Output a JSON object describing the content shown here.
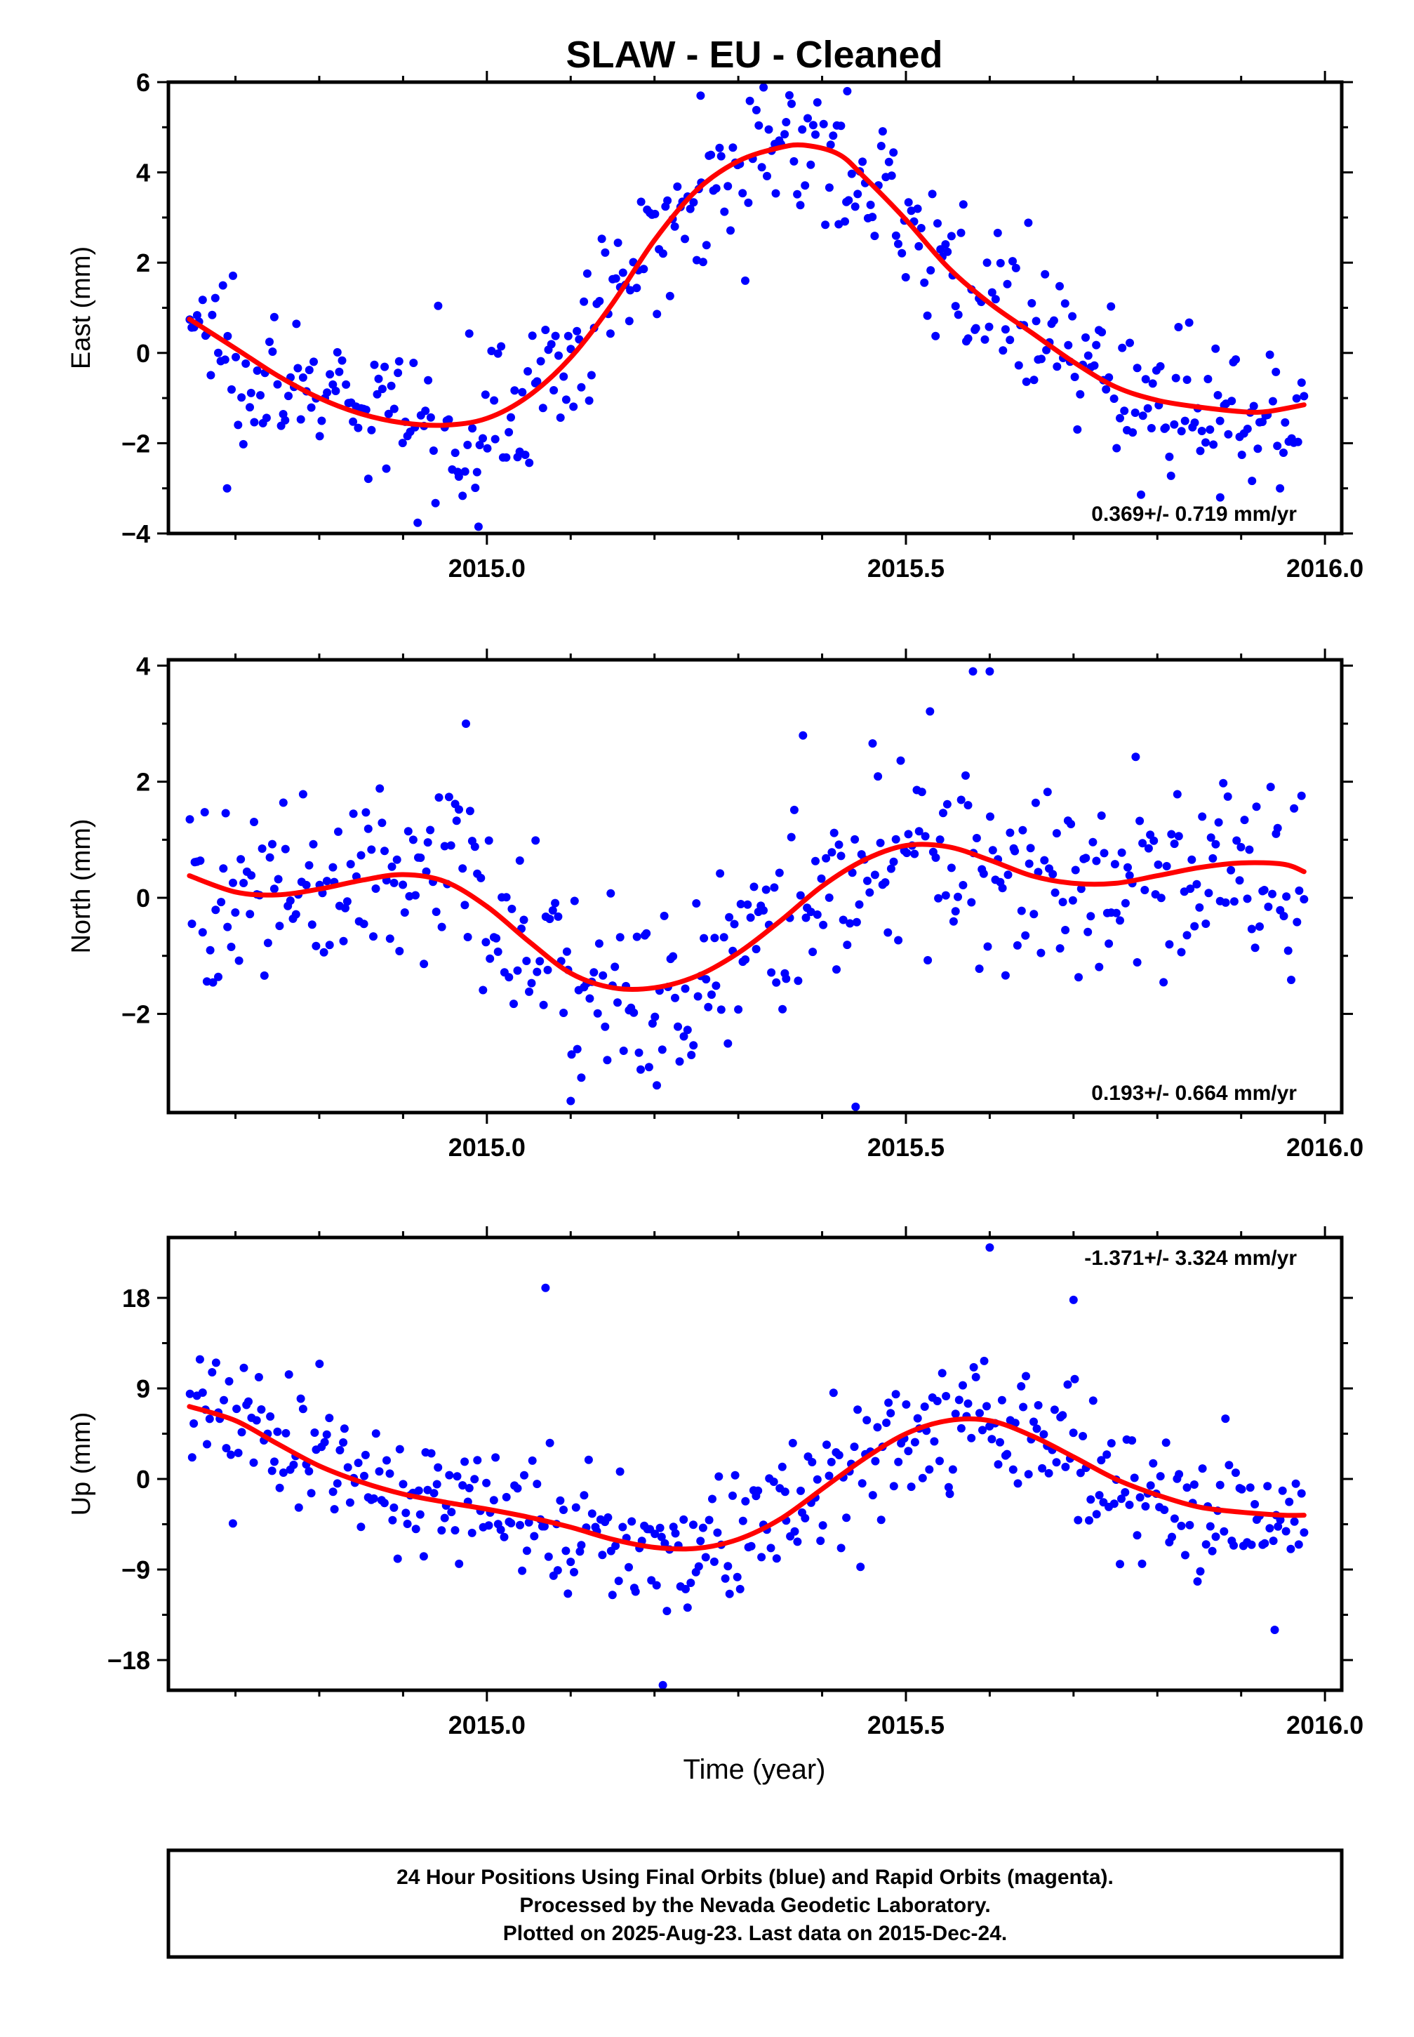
{
  "title": "SLAW  - EU - Cleaned",
  "xlabel": "Time (year)",
  "footer": [
    "24 Hour Positions Using Final Orbits (blue) and Rapid Orbits (magenta).",
    "Processed by the Nevada Geodetic Laboratory.",
    "Plotted on 2025-Aug-23. Last data on 2015-Dec-24."
  ],
  "colors": {
    "final_orbits": "#0000ff",
    "fit": "#ff0000",
    "frame": "#000000"
  },
  "chart_data": [
    {
      "type": "scatter",
      "ylabel": "East (mm)",
      "rate": "0.369+/- 0.719 mm/yr",
      "xlim": [
        2014.62,
        2016.02
      ],
      "ylim": [
        -4,
        6
      ],
      "xticks": [
        2015.0,
        2015.5,
        2016.0
      ],
      "xtick_labels": [
        "2015.0",
        "2015.5",
        "2016.0"
      ],
      "yticks": [
        -4,
        -2,
        0,
        2,
        4,
        6
      ],
      "ytick_labels": [
        "−4",
        "−2",
        "0",
        "2",
        "4",
        "6"
      ],
      "fit": {
        "x": [
          2014.645,
          2014.7,
          2014.75,
          2014.8,
          2014.85,
          2014.9,
          2014.95,
          2015.0,
          2015.05,
          2015.1,
          2015.15,
          2015.2,
          2015.25,
          2015.3,
          2015.35,
          2015.38,
          2015.42,
          2015.45,
          2015.5,
          2015.55,
          2015.6,
          2015.65,
          2015.7,
          2015.75,
          2015.8,
          2015.85,
          2015.9,
          2015.93,
          2015.975
        ],
        "y": [
          0.75,
          0.1,
          -0.5,
          -1.0,
          -1.35,
          -1.55,
          -1.6,
          -1.45,
          -0.95,
          -0.1,
          1.1,
          2.5,
          3.6,
          4.25,
          4.55,
          4.6,
          4.4,
          3.9,
          2.95,
          1.9,
          1.1,
          0.45,
          -0.2,
          -0.75,
          -1.05,
          -1.2,
          -1.3,
          -1.3,
          -1.15
        ]
      },
      "points": {
        "count": 430,
        "x_range": [
          2014.645,
          2015.975
        ],
        "scatter_sd": 0.8,
        "extremes": [
          {
            "x": 2015.255,
            "y": 5.7
          },
          {
            "x": 2015.43,
            "y": 5.8
          },
          {
            "x": 2014.99,
            "y": -3.85
          },
          {
            "x": 2014.69,
            "y": -3.0
          },
          {
            "x": 2015.875,
            "y": -3.2
          }
        ]
      }
    },
    {
      "type": "scatter",
      "ylabel": "North (mm)",
      "rate": "0.193+/- 0.664 mm/yr",
      "xlim": [
        2014.62,
        2016.02
      ],
      "ylim": [
        -3.7,
        4.1
      ],
      "xticks": [
        2015.0,
        2015.5,
        2016.0
      ],
      "xtick_labels": [
        "2015.0",
        "2015.5",
        "2016.0"
      ],
      "yticks": [
        -2,
        0,
        2,
        4
      ],
      "ytick_labels": [
        "−2",
        "0",
        "2",
        "4"
      ],
      "fit": {
        "x": [
          2014.645,
          2014.7,
          2014.75,
          2014.8,
          2014.85,
          2014.9,
          2014.95,
          2015.0,
          2015.05,
          2015.1,
          2015.15,
          2015.2,
          2015.25,
          2015.3,
          2015.35,
          2015.4,
          2015.45,
          2015.5,
          2015.55,
          2015.6,
          2015.65,
          2015.7,
          2015.75,
          2015.8,
          2015.85,
          2015.9,
          2015.95,
          2015.975
        ],
        "y": [
          0.38,
          0.1,
          0.05,
          0.15,
          0.3,
          0.4,
          0.28,
          -0.15,
          -0.75,
          -1.3,
          -1.55,
          -1.55,
          -1.35,
          -0.95,
          -0.4,
          0.2,
          0.65,
          0.9,
          0.88,
          0.65,
          0.38,
          0.25,
          0.25,
          0.38,
          0.52,
          0.6,
          0.58,
          0.45
        ]
      },
      "points": {
        "count": 430,
        "x_range": [
          2014.645,
          2015.975
        ],
        "scatter_sd": 0.85,
        "extremes": [
          {
            "x": 2015.58,
            "y": 3.9
          },
          {
            "x": 2015.6,
            "y": 3.9
          },
          {
            "x": 2015.1,
            "y": -3.5
          },
          {
            "x": 2015.44,
            "y": -3.6
          },
          {
            "x": 2014.975,
            "y": 3.0
          }
        ]
      }
    },
    {
      "type": "scatter",
      "ylabel": "Up (mm)",
      "rate": "-1.371+/- 3.324 mm/yr",
      "xlim": [
        2014.62,
        2016.02
      ],
      "ylim": [
        -21,
        24
      ],
      "xticks": [
        2015.0,
        2015.5,
        2016.0
      ],
      "xtick_labels": [
        "2015.0",
        "2015.5",
        "2016.0"
      ],
      "yticks": [
        -18,
        -9,
        0,
        9,
        18
      ],
      "ytick_labels": [
        "−18",
        "−9",
        "0",
        "9",
        "18"
      ],
      "fit": {
        "x": [
          2014.645,
          2014.7,
          2014.75,
          2014.8,
          2014.85,
          2014.9,
          2014.95,
          2015.0,
          2015.05,
          2015.1,
          2015.15,
          2015.2,
          2015.25,
          2015.3,
          2015.35,
          2015.4,
          2015.45,
          2015.5,
          2015.55,
          2015.6,
          2015.65,
          2015.7,
          2015.75,
          2015.8,
          2015.85,
          2015.9,
          2015.95,
          2015.975
        ],
        "y": [
          7.2,
          5.8,
          3.5,
          1.3,
          -0.3,
          -1.5,
          -2.3,
          -3.0,
          -3.8,
          -4.8,
          -6.0,
          -6.8,
          -6.9,
          -6.0,
          -4.0,
          -1.0,
          2.0,
          4.5,
          5.8,
          5.8,
          4.3,
          2.2,
          0.0,
          -1.6,
          -2.8,
          -3.3,
          -3.6,
          -3.6
        ]
      },
      "points": {
        "count": 430,
        "x_range": [
          2014.645,
          2015.975
        ],
        "scatter_sd": 3.3,
        "extremes": [
          {
            "x": 2015.6,
            "y": 23.0
          },
          {
            "x": 2015.07,
            "y": 19.0
          },
          {
            "x": 2015.7,
            "y": 17.8
          },
          {
            "x": 2015.21,
            "y": -20.5
          },
          {
            "x": 2015.94,
            "y": -15.0
          }
        ]
      }
    }
  ]
}
